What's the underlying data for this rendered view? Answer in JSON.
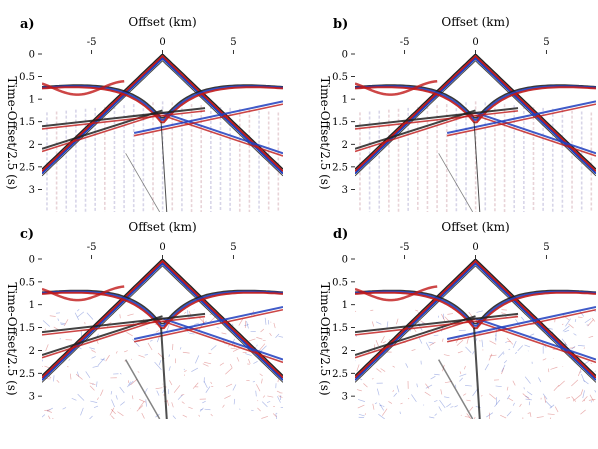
{
  "chart_data": [
    {
      "type": "heatmap",
      "panel_label": "a)",
      "title": "",
      "xlabel": "Offset (km)",
      "ylabel": "Time-Offset/2.5 (s)",
      "xlim": [
        -8.5,
        8.5
      ],
      "ylim": [
        3.5,
        0
      ],
      "x_ticks": [
        -5,
        0,
        5
      ],
      "y_ticks": [
        0,
        0.5,
        1,
        1.5,
        2,
        2.5,
        3
      ],
      "y_tick_labels": [
        "0",
        "0.5",
        "1",
        "1.5",
        "2",
        "2.5",
        "3"
      ],
      "colormap": [
        "#1f3fbf",
        "#ffffff",
        "#c01818"
      ],
      "trace_sampling": "sparse"
    },
    {
      "type": "heatmap",
      "panel_label": "b)",
      "title": "",
      "xlabel": "Offset (km)",
      "ylabel": "Time-Offset/2.5 (s)",
      "xlim": [
        -8.5,
        8.5
      ],
      "ylim": [
        3.5,
        0
      ],
      "x_ticks": [
        -5,
        0,
        5
      ],
      "y_ticks": [
        0,
        0.5,
        1,
        1.5,
        2,
        2.5,
        3
      ],
      "y_tick_labels": [
        "0",
        "0.5",
        "1",
        "1.5",
        "2",
        "2.5",
        "3"
      ],
      "colormap": [
        "#1f3fbf",
        "#ffffff",
        "#c01818"
      ],
      "trace_sampling": "sparse"
    },
    {
      "type": "heatmap",
      "panel_label": "c)",
      "title": "",
      "xlabel": "Offset (km)",
      "ylabel": "Time-Offset/2.5 (s)",
      "xlim": [
        -8.5,
        8.5
      ],
      "ylim": [
        3.5,
        0
      ],
      "x_ticks": [
        -5,
        0,
        5
      ],
      "y_ticks": [
        0,
        0.5,
        1,
        1.5,
        2,
        2.5,
        3
      ],
      "y_tick_labels": [
        "0",
        "0.5",
        "1",
        "1.5",
        "2",
        "2.5",
        "3"
      ],
      "colormap": [
        "#1f3fbf",
        "#ffffff",
        "#c01818"
      ],
      "trace_sampling": "dense"
    },
    {
      "type": "heatmap",
      "panel_label": "d)",
      "title": "",
      "xlabel": "Offset (km)",
      "ylabel": "Time-Offset/2.5 (s)",
      "xlim": [
        -8.5,
        8.5
      ],
      "ylim": [
        3.5,
        0
      ],
      "x_ticks": [
        -5,
        0,
        5
      ],
      "y_ticks": [
        0,
        0.5,
        1,
        1.5,
        2,
        2.5,
        3
      ],
      "y_tick_labels": [
        "0",
        "0.5",
        "1",
        "1.5",
        "2",
        "2.5",
        "3"
      ],
      "colormap": [
        "#1f3fbf",
        "#ffffff",
        "#c01818"
      ],
      "trace_sampling": "dense"
    }
  ]
}
